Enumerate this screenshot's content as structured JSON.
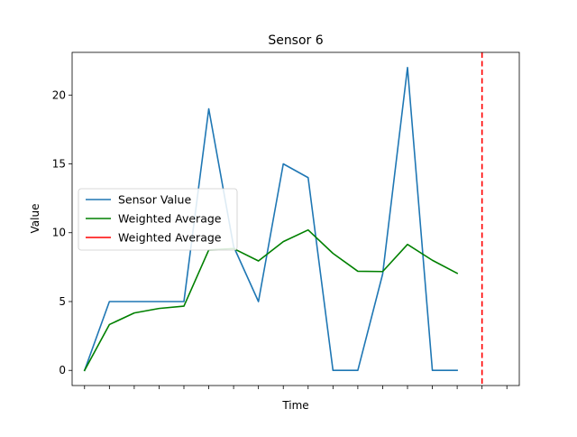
{
  "chart_data": {
    "type": "line",
    "title": "Sensor 6",
    "xlabel": "Time",
    "ylabel": "Value",
    "x": [
      0,
      1,
      2,
      3,
      4,
      5,
      6,
      7,
      8,
      9,
      10,
      11,
      12,
      13,
      14,
      15,
      16
    ],
    "xlim": [
      -0.5,
      17.5
    ],
    "ylim": [
      -1.1,
      23.1
    ],
    "yticks": [
      0,
      5,
      10,
      15,
      20
    ],
    "xtick_count": 18,
    "grid": false,
    "legend_position": "center-left",
    "series": [
      {
        "name": "Sensor Value",
        "color": "#1f77b4",
        "style": "solid",
        "values": [
          0,
          5,
          5,
          5,
          5,
          19,
          9,
          5,
          15,
          14,
          0,
          0,
          7,
          22,
          0,
          0,
          null
        ]
      },
      {
        "name": "Weighted Average",
        "color": "#008000",
        "style": "solid",
        "values": [
          0,
          3.33,
          4.17,
          4.5,
          4.67,
          8.75,
          8.85,
          7.95,
          9.35,
          10.2,
          8.5,
          7.2,
          7.18,
          9.15,
          8.0,
          7.05,
          null
        ]
      },
      {
        "name": "Weighted Average",
        "color": "#ff0000",
        "style": "dashed",
        "type": "vline",
        "x_value": 16
      }
    ]
  }
}
